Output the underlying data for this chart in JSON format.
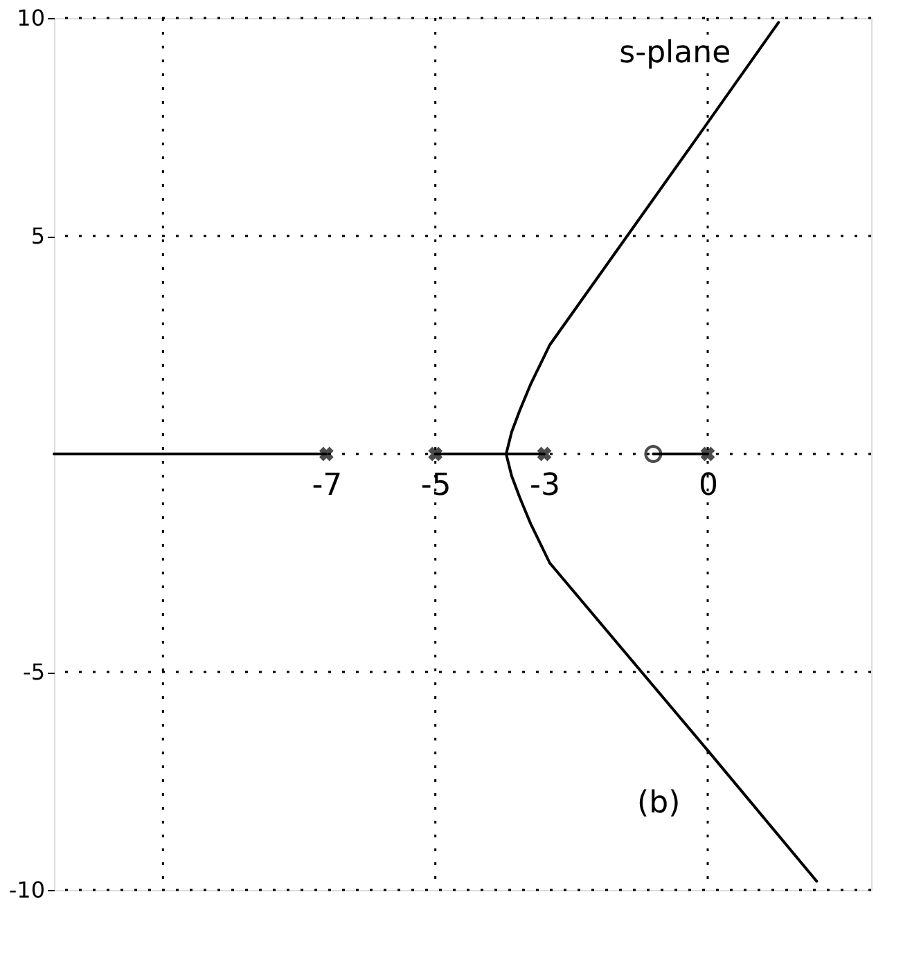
{
  "chart_data": {
    "type": "line",
    "xlim": [
      -12,
      3
    ],
    "xticks": [
      -7,
      -5,
      -3,
      0
    ],
    "ylim": [
      -10,
      10
    ],
    "yticks": [
      -10,
      -5,
      5,
      10
    ],
    "grid": false,
    "line_style": "solid",
    "ref_lines": [
      {
        "axis": "y",
        "value": 10,
        "line_style": "dotted"
      },
      {
        "axis": "y",
        "value": 5,
        "line_style": "dotted"
      },
      {
        "axis": "y",
        "value": 0,
        "line_style": "dotted"
      },
      {
        "axis": "y",
        "value": -5,
        "line_style": "dotted"
      },
      {
        "axis": "y",
        "value": -10,
        "line_style": "dotted"
      },
      {
        "axis": "x",
        "value": -10,
        "line_style": "dotted"
      },
      {
        "axis": "x",
        "value": -5,
        "line_style": "dotted"
      },
      {
        "axis": "x",
        "value": 0,
        "line_style": "dotted"
      }
    ],
    "series": [
      {
        "color": "#000000",
        "x": [
          -12,
          -7
        ],
        "values": [
          0,
          0
        ]
      },
      {
        "color": "#000000",
        "x": [
          -5,
          -3
        ],
        "values": [
          0,
          0
        ]
      },
      {
        "color": "#000000",
        "x": [
          -1,
          0
        ],
        "values": [
          0,
          0
        ]
      },
      {
        "color": "#000000",
        "x": [
          -3.7,
          -3.6,
          -3.45,
          -3.25,
          -2.9,
          0,
          1.3
        ],
        "values": [
          0,
          0.5,
          1.0,
          1.6,
          2.5,
          7.6,
          9.9
        ]
      },
      {
        "color": "#000000",
        "x": [
          -3.7,
          -3.6,
          -3.45,
          -3.25,
          -2.9,
          0,
          2.0
        ],
        "values": [
          0,
          -0.5,
          -1.0,
          -1.6,
          -2.5,
          -6.8,
          -9.8
        ]
      },
      {
        "type": "scatter",
        "marker": "cross",
        "color": "#000000",
        "x": [
          -7,
          -5,
          -3,
          0
        ],
        "values": [
          0,
          0,
          0,
          0
        ]
      },
      {
        "type": "scatter",
        "marker": "circle",
        "color": "#000000",
        "x": [
          -1
        ],
        "values": [
          0
        ]
      }
    ],
    "annotations": [
      "s-plane",
      "(b)"
    ]
  }
}
